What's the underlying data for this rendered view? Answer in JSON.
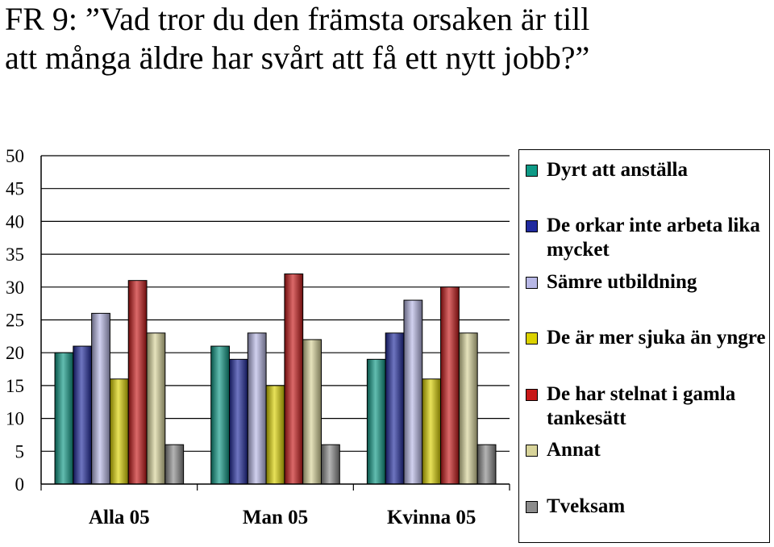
{
  "title_lines": [
    "FR 9: ”Vad tror du den främsta orsaken är till",
    "att många äldre har svårt att få ett nytt jobb?”"
  ],
  "colors": {
    "Dyrt att anställa": "#0e9a86",
    "De orkar inte arbeta lika mycket": "#202a9e",
    "Sämre utbildning": "#b8b8e6",
    "De är mer sjuka än yngre": "#dcd200",
    "De har stelnat i gamla tankesätt": "#c81818",
    "Annat": "#d8d49a",
    "Tveksam": "#8c8c8c"
  },
  "chart_data": {
    "type": "bar",
    "categories": [
      "Alla 05",
      "Man 05",
      "Kvinna 05"
    ],
    "ylim": [
      0,
      50
    ],
    "yticks": [
      "0",
      "5",
      "10",
      "15",
      "20",
      "25",
      "30",
      "35",
      "40",
      "45",
      "50"
    ],
    "grid": true,
    "legend": "right",
    "series": [
      {
        "name": "Dyrt att anställa",
        "values": [
          20,
          21,
          19
        ]
      },
      {
        "name": "De orkar inte arbeta lika mycket",
        "values": [
          21,
          19,
          23
        ]
      },
      {
        "name": "Sämre utbildning",
        "values": [
          26,
          23,
          28
        ]
      },
      {
        "name": "De är mer sjuka än yngre",
        "values": [
          16,
          15,
          16
        ]
      },
      {
        "name": "De har stelnat i gamla tankesätt",
        "values": [
          31,
          32,
          30
        ]
      },
      {
        "name": "Annat",
        "values": [
          23,
          22,
          23
        ]
      },
      {
        "name": "Tveksam",
        "values": [
          6,
          6,
          6
        ]
      }
    ]
  }
}
